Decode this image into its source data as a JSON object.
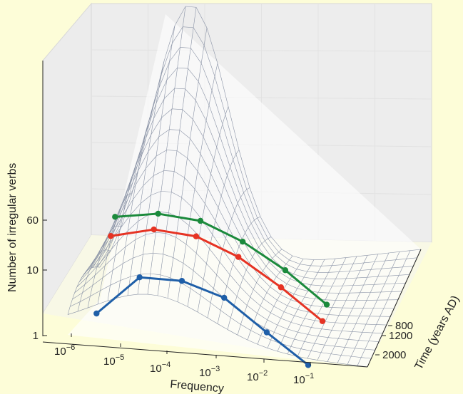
{
  "chart_data": {
    "type": "line",
    "projection": "3d-surface",
    "xlabel": "Frequency",
    "ylabel": "Number of irregular verbs",
    "zlabel": "Time (years AD)",
    "x_scale": "log",
    "y_scale": "log",
    "x_ticks": [
      {
        "value": 1e-06,
        "base": "10",
        "exp": "−6"
      },
      {
        "value": 1e-05,
        "base": "10",
        "exp": "−5"
      },
      {
        "value": 0.0001,
        "base": "10",
        "exp": "−4"
      },
      {
        "value": 0.001,
        "base": "10",
        "exp": "−3"
      },
      {
        "value": 0.01,
        "base": "10",
        "exp": "−2"
      },
      {
        "value": 0.1,
        "base": "10",
        "exp": "−1"
      }
    ],
    "y_ticks": [
      "1",
      "10",
      "60"
    ],
    "z_ticks": [
      "800",
      "1200",
      "2000"
    ],
    "colors": {
      "background": "#fdfdd8",
      "mesh": "#8a93a6",
      "green": "#1b8a3c",
      "red": "#e63323",
      "blue": "#1f5fa8"
    },
    "series": [
      {
        "name": "800",
        "color": "#1b8a3c",
        "x": [
          3e-06,
          2.5e-05,
          0.0002,
          0.0016,
          0.013,
          0.1
        ],
        "y": [
          20,
          45,
          60,
          40,
          18,
          6
        ]
      },
      {
        "name": "1200",
        "color": "#e63323",
        "x": [
          3e-06,
          2.5e-05,
          0.0002,
          0.0016,
          0.013,
          0.1
        ],
        "y": [
          12,
          33,
          45,
          30,
          12,
          4
        ]
      },
      {
        "name": "2000",
        "color": "#1f5fa8",
        "x": [
          3e-06,
          2.5e-05,
          0.0002,
          0.0016,
          0.013,
          0.1
        ],
        "y": [
          1,
          15,
          25,
          20,
          6,
          2
        ]
      }
    ]
  }
}
